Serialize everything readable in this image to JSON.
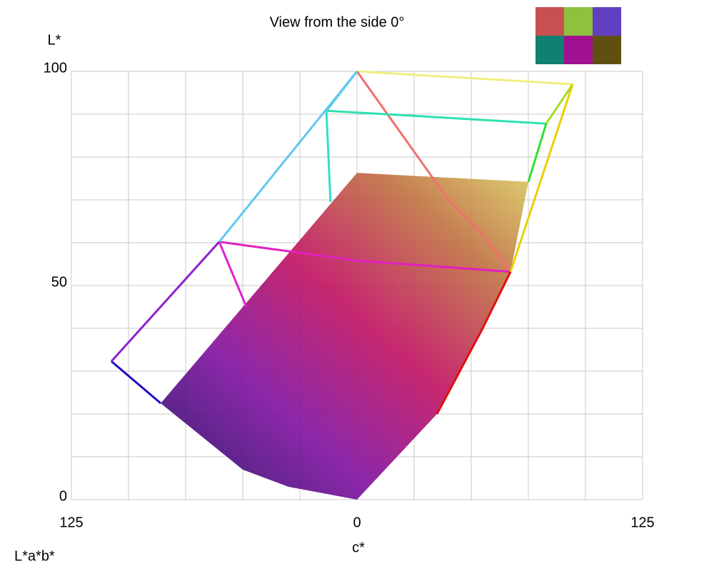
{
  "chart_data": {
    "type": "gamut",
    "title": "View from the side 0°",
    "y_label": "L*",
    "x_label": "c*",
    "corner_label": "L*a*b*",
    "xlim": [
      -125,
      125
    ],
    "ylim": [
      0,
      100
    ],
    "xticks": [
      {
        "value": -125,
        "label": "125"
      },
      0,
      125
    ],
    "yticks": [
      0,
      50,
      100
    ],
    "xgrid": [
      -125,
      -100,
      -75,
      -50,
      -25,
      0,
      25,
      50,
      75,
      100,
      125
    ],
    "ygrid": [
      0,
      10,
      20,
      30,
      40,
      50,
      60,
      70,
      80,
      90,
      100
    ],
    "grid": true,
    "surface": {
      "x": [
        0,
        75,
        67.2,
        55,
        35,
        0,
        -30,
        -50,
        -85.9
      ],
      "values": [
        76.3,
        74.2,
        53.2,
        40,
        20,
        0,
        3,
        7,
        22.5
      ]
    },
    "series": [
      {
        "color": "#f0ee80",
        "x": [
          0,
          94.4
        ],
        "values": [
          100,
          97
        ]
      },
      {
        "color": "#f07070",
        "x": [
          0,
          20,
          40,
          55,
          67.2
        ],
        "values": [
          100,
          85,
          70,
          62,
          53.2
        ]
      },
      {
        "color": "#30e0b0",
        "x": [
          -13.4,
          82.8
        ],
        "values": [
          90.8,
          87.8
        ]
      },
      {
        "color": "#a0e020",
        "x": [
          82.8,
          94.4
        ],
        "values": [
          87.8,
          97
        ]
      },
      {
        "color": "#30e0c8",
        "x": [
          -13.4,
          -11.6
        ],
        "values": [
          90.8,
          69.5
        ]
      },
      {
        "color": "#40d0e0",
        "x": [
          0,
          -13.4
        ],
        "values": [
          100,
          90.8
        ]
      },
      {
        "color": "#e020c0",
        "x": [
          -60.3,
          0,
          67.2
        ],
        "values": [
          60.2,
          55.8,
          53.2
        ]
      },
      {
        "color": "#e020d0",
        "x": [
          -60.3,
          -48.4
        ],
        "values": [
          60.2,
          45
        ]
      },
      {
        "color": "#e8d000",
        "x": [
          94.4,
          67.2
        ],
        "values": [
          97,
          53.2
        ]
      },
      {
        "color": "#30e030",
        "x": [
          82.8,
          75
        ],
        "values": [
          87.8,
          74.2
        ]
      },
      {
        "color": "#2010c0",
        "x": [
          -107.5,
          -85.9
        ],
        "values": [
          32.3,
          22.5
        ]
      },
      {
        "color": "#60c8f0",
        "x": [
          0,
          -60.3
        ],
        "values": [
          100,
          60.2
        ]
      },
      {
        "color": "#9020d0",
        "x": [
          -60.3,
          -107.5
        ],
        "values": [
          60.2,
          32.3
        ]
      },
      {
        "color": "#e01010",
        "x": [
          67.2,
          55,
          35
        ],
        "values": [
          53.2,
          40,
          20
        ]
      }
    ]
  }
}
